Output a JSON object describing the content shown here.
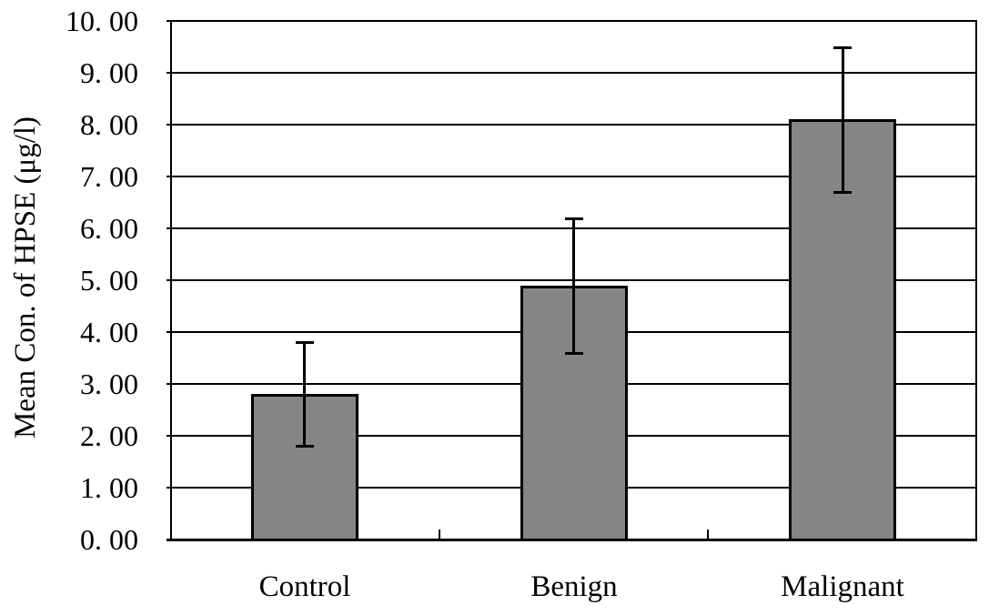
{
  "figure": {
    "background": "#ffffff"
  },
  "chart_data": {
    "type": "bar",
    "title": "",
    "categories": [
      "Control",
      "Benign",
      "Malignant"
    ],
    "values": [
      2.8,
      4.9,
      8.1
    ],
    "error_bars": {
      "upper": [
        3.8,
        6.2,
        9.5
      ],
      "lower": [
        1.8,
        3.6,
        6.7
      ]
    },
    "ylabel": "Mean Con. of HPSE (μg/l)",
    "xlabel": "",
    "ylim": [
      0,
      10
    ],
    "ytick_step": 1,
    "ytick_labels": [
      "10. 00",
      "9. 00",
      "8. 00",
      "7. 00",
      "6. 00",
      "5. 00",
      "4. 00",
      "3. 00",
      "2. 00",
      "1. 00",
      "0. 00"
    ],
    "grid": true,
    "legend": false,
    "colors": {
      "bar_fill": "#858585",
      "bar_border": "#000000",
      "line": "#000000",
      "background": "#ffffff"
    }
  }
}
